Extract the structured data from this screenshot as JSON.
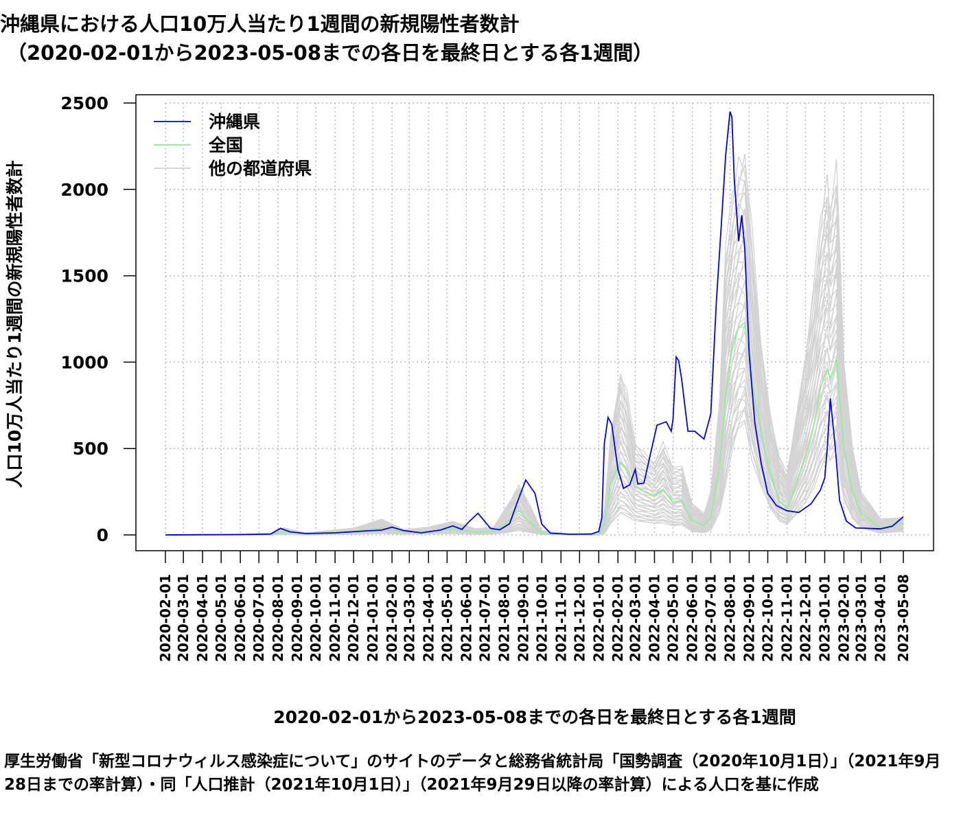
{
  "title_line1": "沖縄県における人口10万人当たり1週間の新規陽性者数計",
  "title_line2": "（2020-02-01から2023-05-08までの各日を最終日とする各1週間）",
  "source_note": "厚生労働省「新型コロナウィルス感染症について」のサイトのデータと総務省統計局「国勢調査（2020年10月1日）」（2021年9月28日までの率計算）・同「人口推計（2021年10月1日）」（2021年9月29日以降の率計算）による人口を基に作成",
  "colors": {
    "okinawa": "#0000ee",
    "national": "#90ee90",
    "other": "#d3d3d3",
    "grid": "#bbbbbb"
  },
  "chart_data": {
    "type": "line",
    "title": "沖縄県における人口10万人当たり1週間の新規陽性者数計",
    "xlabel": "2020-02-01から2023-05-08までの各日を最終日とする各1週間",
    "ylabel": "人口10万人当たり1週間の新規陽性者数計",
    "ylim": [
      0,
      2500
    ],
    "yticks": [
      0,
      500,
      1000,
      1500,
      2000,
      2500
    ],
    "xlim": [
      "2020-02-01",
      "2023-05-08"
    ],
    "xticks": [
      "2020-02-01",
      "2020-03-01",
      "2020-04-01",
      "2020-05-01",
      "2020-06-01",
      "2020-07-01",
      "2020-08-01",
      "2020-09-01",
      "2020-10-01",
      "2020-11-01",
      "2020-12-01",
      "2021-01-01",
      "2021-02-01",
      "2021-03-01",
      "2021-04-01",
      "2021-05-01",
      "2021-06-01",
      "2021-07-01",
      "2021-08-01",
      "2021-09-01",
      "2021-10-01",
      "2021-11-01",
      "2021-12-01",
      "2022-01-01",
      "2022-02-01",
      "2022-03-01",
      "2022-04-01",
      "2022-05-01",
      "2022-06-01",
      "2022-07-01",
      "2022-08-01",
      "2022-09-01",
      "2022-10-01",
      "2022-11-01",
      "2022-12-01",
      "2023-01-01",
      "2023-02-01",
      "2023-03-01",
      "2023-04-01",
      "2023-05-08"
    ],
    "grid": true,
    "legend_position": "top-left",
    "legend": [
      "沖縄県",
      "全国",
      "他の都道府県"
    ],
    "series": [
      {
        "name": "沖縄県",
        "x": [
          "2020-02-01",
          "2020-06-01",
          "2020-07-20",
          "2020-08-05",
          "2020-08-20",
          "2020-09-15",
          "2020-11-01",
          "2020-12-15",
          "2021-01-15",
          "2021-02-01",
          "2021-02-20",
          "2021-03-20",
          "2021-04-20",
          "2021-05-10",
          "2021-05-25",
          "2021-06-05",
          "2021-06-20",
          "2021-07-10",
          "2021-07-25",
          "2021-08-10",
          "2021-08-25",
          "2021-09-05",
          "2021-09-20",
          "2021-10-01",
          "2021-10-15",
          "2021-11-15",
          "2021-12-20",
          "2022-01-01",
          "2022-01-06",
          "2022-01-10",
          "2022-01-16",
          "2022-01-22",
          "2022-02-01",
          "2022-02-10",
          "2022-02-20",
          "2022-03-01",
          "2022-03-05",
          "2022-03-15",
          "2022-03-25",
          "2022-04-05",
          "2022-04-20",
          "2022-04-28",
          "2022-05-01",
          "2022-05-06",
          "2022-05-10",
          "2022-05-15",
          "2022-05-25",
          "2022-06-05",
          "2022-06-20",
          "2022-07-01",
          "2022-07-10",
          "2022-07-18",
          "2022-07-25",
          "2022-08-01",
          "2022-08-04",
          "2022-08-08",
          "2022-08-15",
          "2022-08-20",
          "2022-08-25",
          "2022-09-01",
          "2022-09-10",
          "2022-09-20",
          "2022-10-01",
          "2022-10-15",
          "2022-11-01",
          "2022-11-20",
          "2022-12-10",
          "2022-12-25",
          "2023-01-01",
          "2023-01-05",
          "2023-01-10",
          "2023-01-18",
          "2023-01-25",
          "2023-02-05",
          "2023-02-20",
          "2023-03-10",
          "2023-04-01",
          "2023-04-20",
          "2023-05-08"
        ],
        "values": [
          0,
          2,
          5,
          38,
          18,
          8,
          12,
          22,
          28,
          45,
          25,
          12,
          28,
          52,
          32,
          75,
          125,
          38,
          30,
          65,
          215,
          318,
          240,
          62,
          10,
          4,
          5,
          20,
          100,
          530,
          680,
          640,
          380,
          270,
          290,
          380,
          295,
          300,
          460,
          635,
          655,
          600,
          670,
          1030,
          1010,
          900,
          600,
          600,
          555,
          700,
          1350,
          1800,
          2200,
          2450,
          2420,
          2050,
          1700,
          1850,
          1650,
          1050,
          650,
          420,
          240,
          170,
          140,
          130,
          180,
          260,
          330,
          500,
          790,
          510,
          200,
          80,
          40,
          38,
          35,
          50,
          105
        ]
      },
      {
        "name": "全国",
        "x": [
          "2020-02-01",
          "2020-07-20",
          "2020-08-10",
          "2020-09-15",
          "2020-12-01",
          "2021-01-15",
          "2021-02-20",
          "2021-04-01",
          "2021-05-10",
          "2021-06-15",
          "2021-07-15",
          "2021-08-01",
          "2021-08-25",
          "2021-09-10",
          "2021-10-01",
          "2021-11-15",
          "2022-01-01",
          "2022-01-10",
          "2022-01-20",
          "2022-02-05",
          "2022-02-15",
          "2022-03-01",
          "2022-03-15",
          "2022-04-01",
          "2022-04-15",
          "2022-05-01",
          "2022-05-15",
          "2022-06-01",
          "2022-06-20",
          "2022-07-01",
          "2022-07-15",
          "2022-07-25",
          "2022-08-05",
          "2022-08-15",
          "2022-08-25",
          "2022-09-05",
          "2022-09-20",
          "2022-10-05",
          "2022-10-20",
          "2022-11-01",
          "2022-11-15",
          "2022-12-01",
          "2022-12-15",
          "2022-12-25",
          "2023-01-05",
          "2023-01-10",
          "2023-01-20",
          "2023-02-01",
          "2023-02-15",
          "2023-03-01",
          "2023-04-01",
          "2023-05-08"
        ],
        "values": [
          0,
          3,
          18,
          5,
          20,
          40,
          15,
          20,
          35,
          15,
          20,
          60,
          140,
          80,
          10,
          2,
          2,
          60,
          300,
          420,
          380,
          280,
          250,
          230,
          265,
          190,
          200,
          80,
          55,
          100,
          400,
          800,
          1100,
          1200,
          1230,
          900,
          600,
          350,
          200,
          150,
          280,
          450,
          650,
          850,
          960,
          900,
          1020,
          500,
          250,
          120,
          40,
          70
        ]
      }
    ],
    "other_prefectures": {
      "name": "他の都道府県",
      "count": 46,
      "envelope_x": [
        "2020-02-01",
        "2020-07-20",
        "2020-08-10",
        "2020-09-15",
        "2020-12-01",
        "2021-01-15",
        "2021-02-20",
        "2021-04-01",
        "2021-05-10",
        "2021-06-15",
        "2021-07-15",
        "2021-08-01",
        "2021-08-25",
        "2021-09-10",
        "2021-10-01",
        "2021-11-15",
        "2022-01-01",
        "2022-01-10",
        "2022-01-20",
        "2022-02-05",
        "2022-02-15",
        "2022-03-01",
        "2022-03-15",
        "2022-04-01",
        "2022-04-15",
        "2022-05-01",
        "2022-05-15",
        "2022-06-01",
        "2022-06-20",
        "2022-07-01",
        "2022-07-15",
        "2022-07-25",
        "2022-08-05",
        "2022-08-15",
        "2022-08-25",
        "2022-09-05",
        "2022-09-20",
        "2022-10-05",
        "2022-10-20",
        "2022-11-01",
        "2022-11-15",
        "2022-12-01",
        "2022-12-15",
        "2022-12-25",
        "2023-01-05",
        "2023-01-10",
        "2023-01-20",
        "2023-02-01",
        "2023-02-15",
        "2023-03-01",
        "2023-04-01",
        "2023-05-08"
      ],
      "envelope_min": [
        0,
        0,
        3,
        1,
        4,
        8,
        3,
        4,
        8,
        3,
        4,
        10,
        25,
        15,
        2,
        0,
        0,
        5,
        60,
        120,
        110,
        80,
        70,
        65,
        70,
        50,
        55,
        20,
        12,
        25,
        120,
        300,
        500,
        600,
        650,
        450,
        280,
        150,
        80,
        60,
        110,
        180,
        280,
        380,
        450,
        420,
        480,
        200,
        90,
        40,
        10,
        20
      ],
      "envelope_max": [
        0,
        6,
        40,
        12,
        40,
        90,
        30,
        45,
        80,
        35,
        45,
        140,
        290,
        180,
        25,
        5,
        5,
        140,
        560,
        950,
        820,
        520,
        480,
        420,
        520,
        390,
        400,
        180,
        120,
        250,
        780,
        1650,
        1950,
        2150,
        2200,
        1750,
        1100,
        700,
        450,
        350,
        650,
        1050,
        1450,
        1800,
        2050,
        1900,
        2100,
        1000,
        500,
        250,
        90,
        100
      ]
    }
  }
}
